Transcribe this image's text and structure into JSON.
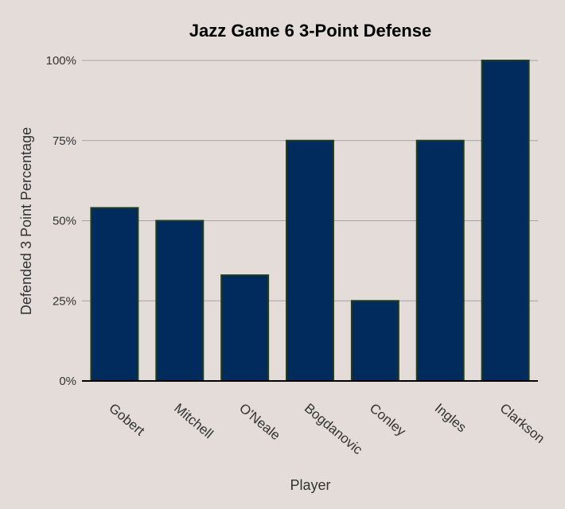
{
  "chart_data": {
    "type": "bar",
    "title": "Jazz Game 6 3-Point Defense",
    "xlabel": "Player",
    "ylabel": "Defended 3 Point Percentage",
    "categories": [
      "Gobert",
      "Mitchell",
      "O'Neale",
      "Bogdanovic",
      "Conley",
      "Ingles",
      "Clarkson"
    ],
    "values": [
      54,
      50,
      33,
      75,
      25,
      75,
      100
    ],
    "ylim": [
      0,
      100
    ],
    "yticks": [
      "0%",
      "25%",
      "50%",
      "75%",
      "100%"
    ],
    "grid": true,
    "colors": {
      "bar_fill": "#002b5c",
      "bar_stroke": "#1f3d1f",
      "grid": "#a3a3a3",
      "background": "#e3dcd8"
    }
  }
}
